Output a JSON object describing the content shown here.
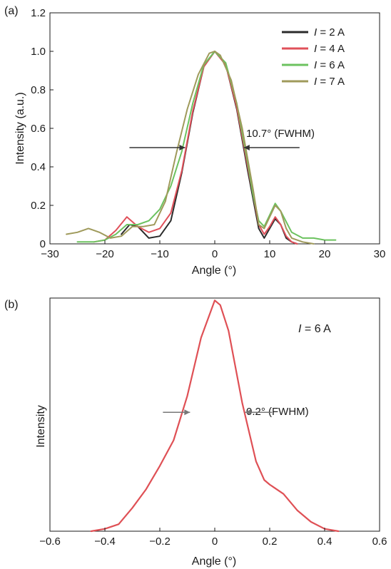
{
  "chart_data": [
    {
      "panel_label": "(a)",
      "type": "line",
      "xlabel": "Angle (°)",
      "ylabel": "Intensity (a.u.)",
      "xlim": [
        -30,
        30
      ],
      "ylim": [
        0,
        1.2
      ],
      "xticks": [
        -30,
        -20,
        -10,
        0,
        10,
        20,
        30
      ],
      "xtick_labels": [
        "−30",
        "−20",
        "−10",
        "0",
        "10",
        "20",
        "30"
      ],
      "yticks": [
        0,
        0.2,
        0.4,
        0.6,
        0.8,
        1.0,
        1.2
      ],
      "ytick_labels": [
        "0",
        "0.2",
        "0.4",
        "0.6",
        "0.8",
        "1.0",
        "1.2"
      ],
      "grid": false,
      "legend_position": "top-right",
      "annotation": {
        "text": "10.7° (FWHM)",
        "x_left": -5.4,
        "x_right": 5.3,
        "y": 0.5
      },
      "series": [
        {
          "name": "I = 2 A",
          "legend_var": "I",
          "legend_val": " = 2 A",
          "color": "#2b2b2b",
          "x": [
            -17,
            -15.5,
            -14,
            -12,
            -10,
            -8,
            -6,
            -4,
            -2,
            0,
            2,
            4,
            6,
            8,
            9,
            10,
            11,
            12,
            13,
            14,
            15
          ],
          "y": [
            0.05,
            0.1,
            0.09,
            0.03,
            0.04,
            0.12,
            0.37,
            0.68,
            0.92,
            1.0,
            0.93,
            0.7,
            0.38,
            0.08,
            0.03,
            0.08,
            0.13,
            0.1,
            0.03,
            0.01,
            0.0
          ]
        },
        {
          "name": "I = 4 A",
          "legend_var": "I",
          "legend_val": " = 4 A",
          "color": "#e0505a",
          "x": [
            -22,
            -20,
            -18,
            -16,
            -14,
            -12,
            -10,
            -8,
            -6,
            -4,
            -2,
            0,
            2,
            4,
            6,
            8,
            9,
            10,
            11,
            12,
            13,
            14,
            15
          ],
          "y": [
            0.01,
            0.02,
            0.07,
            0.14,
            0.09,
            0.06,
            0.08,
            0.16,
            0.38,
            0.69,
            0.92,
            1.0,
            0.93,
            0.71,
            0.4,
            0.1,
            0.05,
            0.09,
            0.14,
            0.1,
            0.04,
            0.01,
            0.0
          ]
        },
        {
          "name": "I = 6 A",
          "legend_var": "I",
          "legend_val": " = 6 A",
          "color": "#6cc25f",
          "x": [
            -25,
            -22,
            -20,
            -18,
            -16,
            -14,
            -12,
            -10,
            -8,
            -6,
            -4,
            -2,
            0,
            2,
            4,
            6,
            7,
            8,
            9,
            10,
            11,
            12,
            14,
            16,
            18,
            20,
            22
          ],
          "y": [
            0.01,
            0.01,
            0.02,
            0.05,
            0.1,
            0.1,
            0.12,
            0.18,
            0.3,
            0.48,
            0.73,
            0.93,
            1.0,
            0.94,
            0.73,
            0.42,
            0.25,
            0.12,
            0.09,
            0.15,
            0.21,
            0.17,
            0.06,
            0.03,
            0.03,
            0.02,
            0.02
          ]
        },
        {
          "name": "I = 7 A",
          "legend_var": "I",
          "legend_val": " = 7 A",
          "color": "#9f9a5b",
          "x": [
            -27,
            -25,
            -23,
            -21,
            -19,
            -17,
            -15,
            -13,
            -11,
            -9,
            -7,
            -5,
            -3,
            -1,
            0,
            1,
            3,
            5,
            7,
            8,
            9,
            10,
            11,
            12,
            13,
            14,
            16,
            18
          ],
          "y": [
            0.05,
            0.06,
            0.08,
            0.06,
            0.03,
            0.04,
            0.09,
            0.09,
            0.1,
            0.22,
            0.47,
            0.7,
            0.88,
            0.99,
            1.0,
            0.98,
            0.85,
            0.6,
            0.28,
            0.1,
            0.08,
            0.14,
            0.2,
            0.17,
            0.08,
            0.03,
            0.01,
            0.0
          ]
        }
      ]
    },
    {
      "panel_label": "(b)",
      "type": "line",
      "xlabel": "Angle (°)",
      "ylabel": "Intensity",
      "xlim": [
        -0.6,
        0.6
      ],
      "ylim": [
        0,
        1.0
      ],
      "xticks": [
        -0.6,
        -0.4,
        -0.2,
        0,
        0.2,
        0.4,
        0.6
      ],
      "xtick_labels": [
        "−0.6",
        "−0.4",
        "−0.2",
        "0",
        "0.2",
        "0.4",
        "0.6"
      ],
      "grid": false,
      "annotation_label": {
        "var": "I",
        "val": " = 6 A"
      },
      "annotation": {
        "text": "0.2° (FWHM)",
        "x_left": -0.09,
        "x_right": 0.11,
        "y": 0.51
      },
      "series": [
        {
          "name": "I = 6 A",
          "color": "#df5055",
          "x": [
            -0.45,
            -0.4,
            -0.35,
            -0.3,
            -0.25,
            -0.2,
            -0.15,
            -0.1,
            -0.05,
            0,
            0.02,
            0.05,
            0.1,
            0.15,
            0.18,
            0.2,
            0.25,
            0.3,
            0.35,
            0.4,
            0.45
          ],
          "y": [
            0.0,
            0.01,
            0.03,
            0.1,
            0.18,
            0.28,
            0.39,
            0.58,
            0.83,
            0.99,
            0.97,
            0.86,
            0.55,
            0.3,
            0.22,
            0.2,
            0.16,
            0.09,
            0.04,
            0.01,
            0.0
          ]
        }
      ]
    }
  ]
}
